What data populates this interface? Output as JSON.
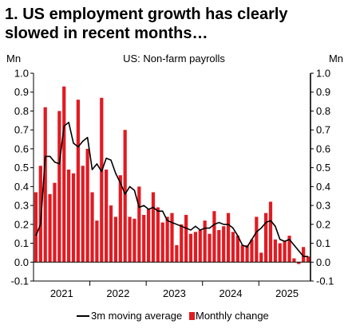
{
  "title_lines": [
    "1. US employment growth has clearly",
    "slowed in recent months…"
  ],
  "chart_data": {
    "type": "bar",
    "subtitle": "US: Non-farm payrolls",
    "ylabel_left": "Mn",
    "ylabel_right": "Mn",
    "ylim": [
      -0.1,
      1.0
    ],
    "yticks": [
      "1.0",
      "0.9",
      "0.8",
      "0.7",
      "0.6",
      "0.5",
      "0.4",
      "0.3",
      "0.2",
      "0.1",
      "0.0",
      "-0.1"
    ],
    "ytick_values": [
      1.0,
      0.9,
      0.8,
      0.7,
      0.6,
      0.5,
      0.4,
      0.3,
      0.2,
      0.1,
      0.0,
      -0.1
    ],
    "xlabels": [
      "2021",
      "2022",
      "2023",
      "2024",
      "2025"
    ],
    "xlabel_month_index": [
      6,
      18,
      30,
      42,
      54
    ],
    "year_boundaries": [
      12,
      24,
      36,
      48
    ],
    "months_total": 59,
    "start": "2020-08",
    "grid": false,
    "legend": [
      "3m moving average",
      "Monthly change"
    ],
    "legend_position": "bottom",
    "colors": {
      "bar": "#e11b22",
      "line": "#000000"
    },
    "series": [
      {
        "name": "Monthly change",
        "type": "bar",
        "values": [
          0.37,
          0.51,
          0.82,
          0.36,
          0.42,
          0.8,
          0.93,
          0.49,
          0.47,
          0.86,
          0.51,
          0.6,
          0.37,
          0.22,
          0.87,
          0.49,
          0.3,
          0.24,
          0.46,
          0.7,
          0.24,
          0.23,
          0.4,
          0.25,
          0.28,
          0.37,
          0.29,
          0.21,
          0.24,
          0.26,
          0.09,
          0.2,
          0.25,
          0.15,
          0.16,
          0.17,
          0.22,
          0.15,
          0.27,
          0.17,
          0.19,
          0.26,
          0.16,
          0.14,
          0.09,
          0.09,
          0.12,
          0.24,
          0.05,
          0.26,
          0.32,
          0.12,
          0.1,
          0.11,
          0.14,
          0.02,
          -0.01,
          0.08,
          0.03
        ]
      },
      {
        "name": "3m moving average",
        "type": "line",
        "values": [
          0.14,
          0.2,
          0.56,
          0.56,
          0.53,
          0.52,
          0.72,
          0.74,
          0.63,
          0.61,
          0.64,
          0.66,
          0.49,
          0.52,
          0.48,
          0.55,
          0.54,
          0.47,
          0.42,
          0.36,
          0.4,
          0.38,
          0.29,
          0.3,
          0.28,
          0.29,
          0.27,
          0.27,
          0.22,
          0.21,
          0.2,
          0.19,
          0.18,
          0.17,
          0.19,
          0.17,
          0.18,
          0.18,
          0.2,
          0.21,
          0.2,
          0.2,
          0.18,
          0.14,
          0.09,
          0.08,
          0.12,
          0.16,
          0.18,
          0.21,
          0.22,
          0.19,
          0.12,
          0.11,
          0.12,
          0.09,
          0.06,
          0.03,
          0.03
        ]
      }
    ]
  }
}
